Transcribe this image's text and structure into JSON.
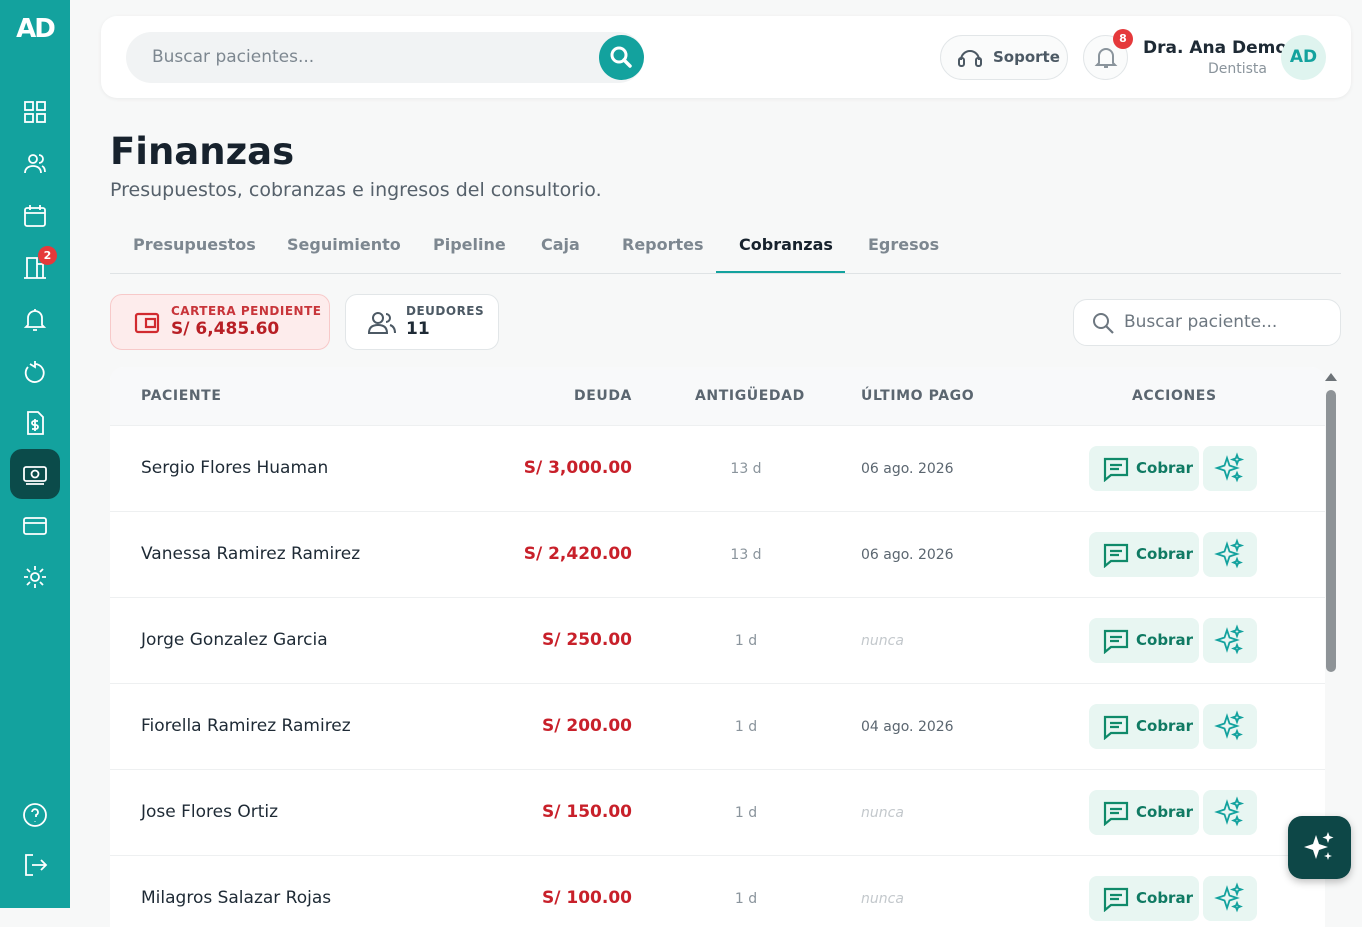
{
  "sidebar": {
    "logo": "AD",
    "badge": "2"
  },
  "header": {
    "search_placeholder": "Buscar pacientes...",
    "support": "Soporte",
    "notifications": "8",
    "user_name": "Dra. Ana Demo",
    "user_role": "Dentista",
    "avatar": "AD"
  },
  "page": {
    "title": "Finanzas",
    "subtitle": "Presupuestos, cobranzas e ingresos del consultorio."
  },
  "tabs": [
    "Presupuestos",
    "Seguimiento",
    "Pipeline",
    "Caja",
    "Reportes",
    "Cobranzas",
    "Egresos"
  ],
  "summary": [
    {
      "label": "CARTERA PENDIENTE",
      "value": "S/ 6,485.60"
    },
    {
      "label": "DEUDORES",
      "value": "11"
    }
  ],
  "table_search_placeholder": "Buscar paciente...",
  "table": {
    "headers": [
      "PACIENTE",
      "DEUDA",
      "ANTIGÜEDAD",
      "ÚLTIMO PAGO",
      "ACCIONES"
    ],
    "rows": [
      {
        "patient": "Sergio Flores Huaman",
        "debt": "S/ 3,000.00",
        "age": "13 d",
        "last_payment": "06 ago. 2026",
        "action": "Cobrar"
      },
      {
        "patient": "Vanessa Ramirez Ramirez",
        "debt": "S/ 2,420.00",
        "age": "13 d",
        "last_payment": "06 ago. 2026",
        "action": "Cobrar"
      },
      {
        "patient": "Jorge Gonzalez Garcia",
        "debt": "S/ 250.00",
        "age": "1 d",
        "last_payment": "nunca",
        "action": "Cobrar"
      },
      {
        "patient": "Fiorella Ramirez Ramirez",
        "debt": "S/ 200.00",
        "age": "1 d",
        "last_payment": "04 ago. 2026",
        "action": "Cobrar"
      },
      {
        "patient": "Jose Flores Ortiz",
        "debt": "S/ 150.00",
        "age": "1 d",
        "last_payment": "nunca",
        "action": "Cobrar"
      },
      {
        "patient": "Milagros Salazar Rojas",
        "debt": "S/ 100.00",
        "age": "1 d",
        "last_payment": "nunca",
        "action": "Cobrar"
      }
    ]
  }
}
